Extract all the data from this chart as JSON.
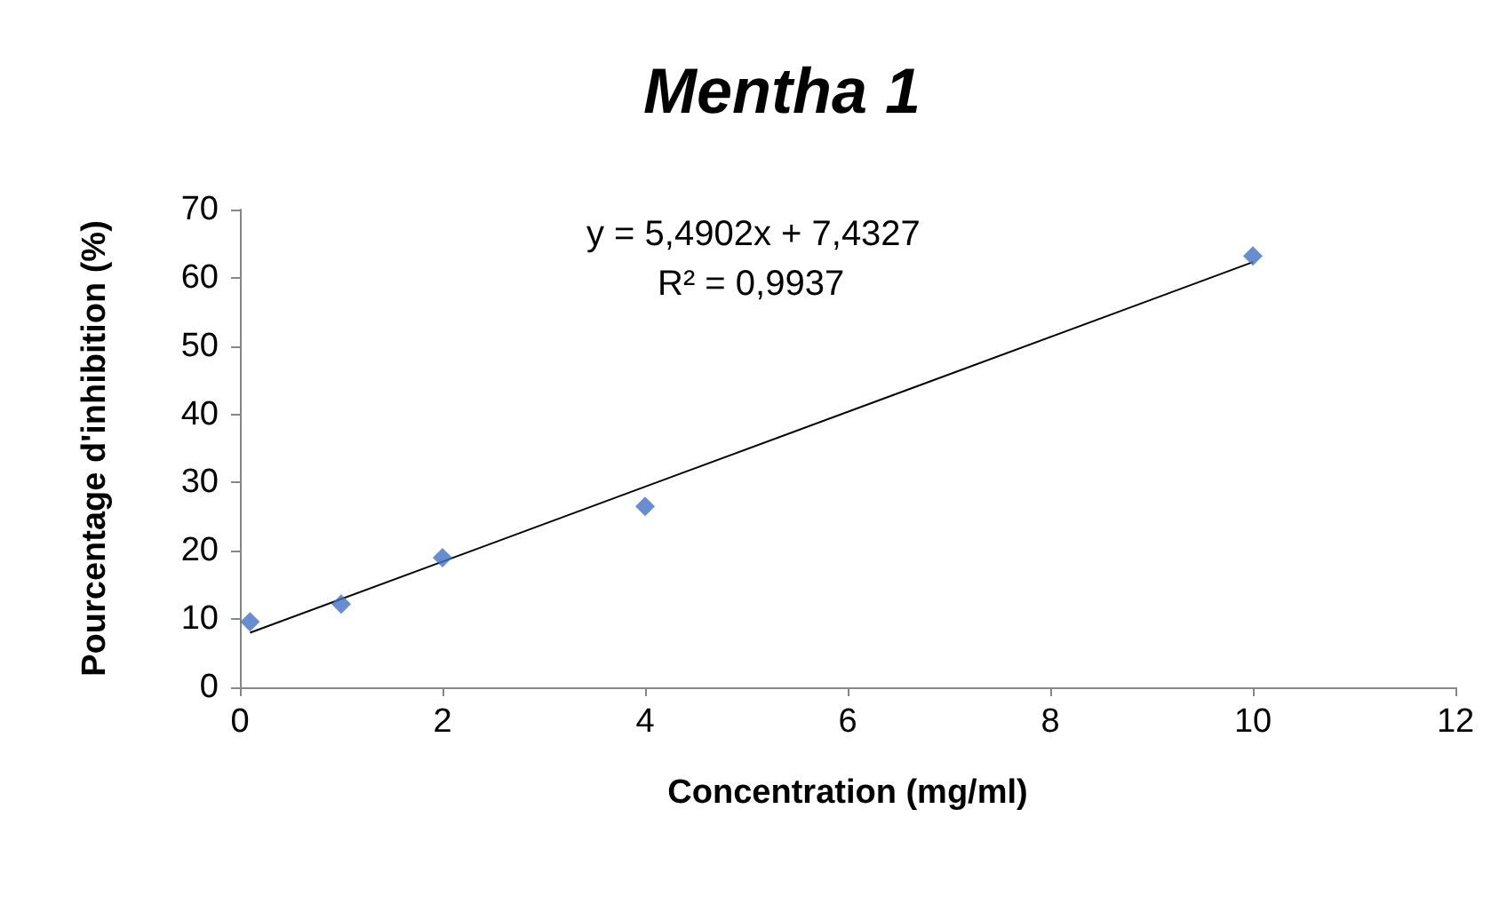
{
  "chart_data": {
    "type": "scatter",
    "title": "Mentha 1",
    "xlabel": "Concentration (mg/ml)",
    "ylabel": "Pourcentage d'inhibition (%)",
    "annotations": [
      "y = 5,4902x + 7,4327",
      "R² = 0,9937"
    ],
    "series": [
      {
        "type": "scatter",
        "color": "#4472c4",
        "marker": "diamond",
        "x": [
          0.1,
          1,
          2,
          4,
          10
        ],
        "values": [
          9.6,
          12.2,
          19.0,
          26.5,
          63.2
        ]
      },
      {
        "type": "line",
        "color": "#000000",
        "marker": "none",
        "x": [
          0.1,
          10
        ],
        "values": [
          8.0,
          62.3
        ]
      }
    ],
    "xlim": [
      0,
      12
    ],
    "xticks": [
      0,
      2,
      4,
      6,
      8,
      10,
      12
    ],
    "ylim": [
      0,
      70
    ],
    "yticks": [
      0,
      10,
      20,
      30,
      40,
      50,
      60,
      70
    ],
    "grid": false
  }
}
